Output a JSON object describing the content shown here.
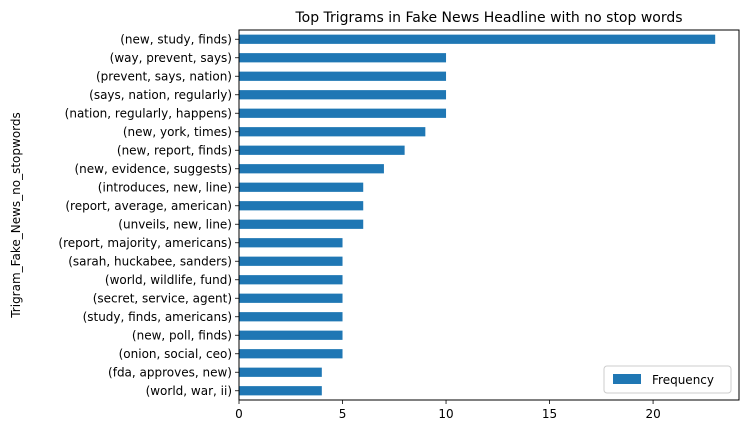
{
  "chart_data": {
    "type": "bar",
    "orientation": "horizontal",
    "title": "Top Trigrams in Fake News Headline with no stop words",
    "xlabel": "",
    "ylabel": "Trigram_Fake_News_no_stopwords",
    "categories": [
      "(new, study, finds)",
      "(way, prevent, says)",
      "(prevent, says, nation)",
      "(says, nation, regularly)",
      "(nation, regularly, happens)",
      "(new, york, times)",
      "(new, report, finds)",
      "(new, evidence, suggests)",
      "(introduces, new, line)",
      "(report, average, american)",
      "(unveils, new, line)",
      "(report, majority, americans)",
      "(sarah, huckabee, sanders)",
      "(world, wildlife, fund)",
      "(secret, service, agent)",
      "(study, finds, americans)",
      "(new, poll, finds)",
      "(onion, social, ceo)",
      "(fda, approves, new)",
      "(world, war, ii)"
    ],
    "series": [
      {
        "name": "Frequency",
        "color": "#1f77b4",
        "values": [
          23,
          10,
          10,
          10,
          10,
          9,
          8,
          7,
          6,
          6,
          6,
          5,
          5,
          5,
          5,
          5,
          5,
          5,
          4,
          4
        ]
      }
    ],
    "xlim": [
      0,
      24.15
    ],
    "xticks": [
      0,
      5,
      10,
      15,
      20
    ],
    "xtick_labels": [
      "0",
      "5",
      "10",
      "15",
      "20"
    ],
    "grid": false,
    "legend_position": "lower-right"
  }
}
